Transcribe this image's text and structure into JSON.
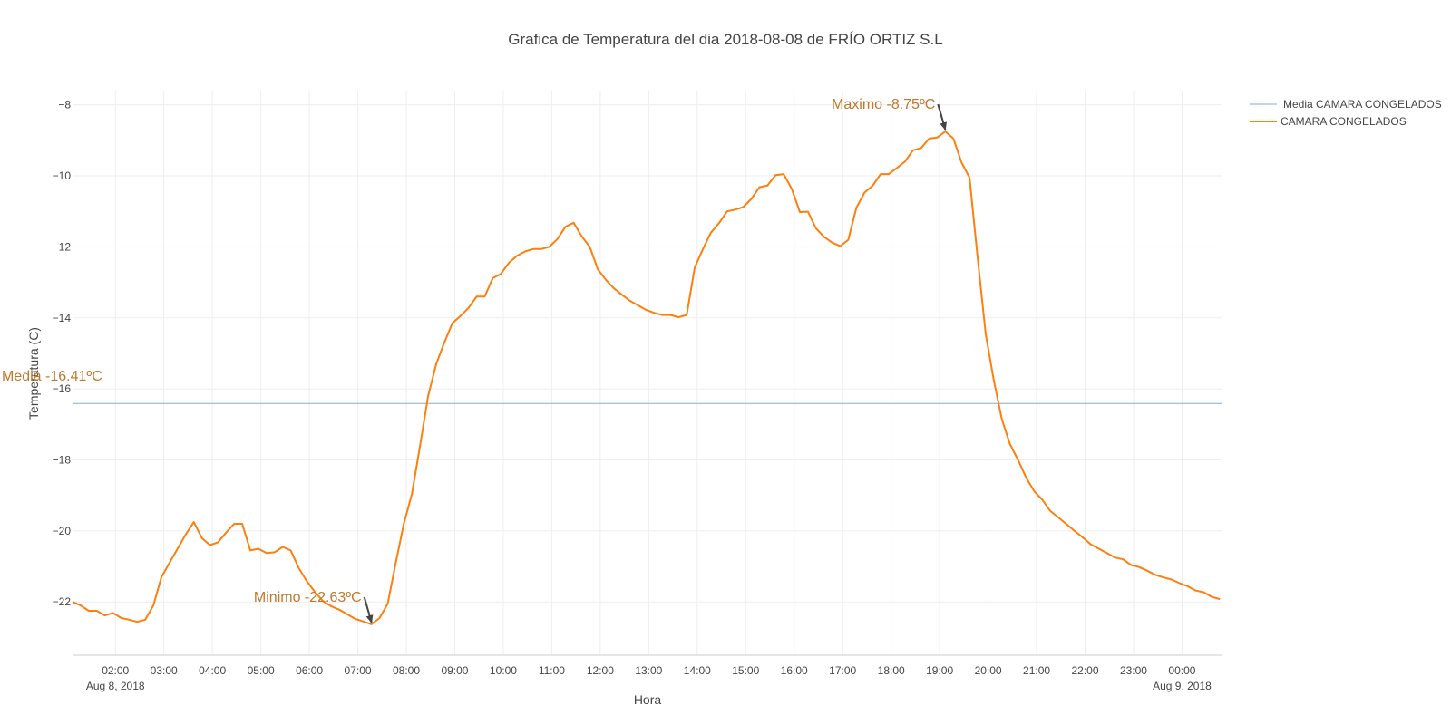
{
  "chart_data": {
    "type": "line",
    "title": "Grafica de Temperatura del dia 2018-08-08 de FRÍO ORTIZ S.L",
    "xlabel": "Hora",
    "ylabel": "Temperatura (C)",
    "x_range": [
      "2018-08-08 01:07",
      "2018-08-09 00:50"
    ],
    "ylim": [
      -23.5,
      -7.6
    ],
    "grid": true,
    "legend_position": "top-right",
    "x_ticks": [
      "02:00",
      "03:00",
      "04:00",
      "05:00",
      "06:00",
      "07:00",
      "08:00",
      "09:00",
      "10:00",
      "11:00",
      "12:00",
      "13:00",
      "14:00",
      "15:00",
      "15:00",
      "16:00",
      "17:00",
      "18:00",
      "19:00",
      "20:00",
      "21:00",
      "22:00",
      "23:00",
      "00:00"
    ],
    "x_tick_times": [
      "2018-08-08 02:00",
      "2018-08-08 03:00",
      "2018-08-08 04:00",
      "2018-08-08 05:00",
      "2018-08-08 06:00",
      "2018-08-08 07:00",
      "2018-08-08 08:00",
      "2018-08-08 09:00",
      "2018-08-08 10:00",
      "2018-08-08 11:00",
      "2018-08-08 12:00",
      "2018-08-08 13:00",
      "2018-08-08 14:00",
      "2018-08-08 15:00",
      "2018-08-08 15:00",
      "2018-08-08 16:00",
      "2018-08-08 17:00",
      "2018-08-08 18:00",
      "2018-08-08 19:00",
      "2018-08-08 20:00",
      "2018-08-08 21:00",
      "2018-08-08 22:00",
      "2018-08-08 23:00",
      "2018-08-09 00:00"
    ],
    "date_labels": [
      {
        "text": "Aug 8, 2018",
        "at": "2018-08-08 02:00"
      },
      {
        "text": "Aug 9, 2018",
        "at": "2018-08-09 00:00"
      }
    ],
    "y_ticks": [
      -22,
      -20,
      -18,
      -16,
      -14,
      -12,
      -10,
      -8
    ],
    "series": [
      {
        "name": "Media CAMARA CONGELADOS",
        "color": "#8aaecb",
        "x": [
          "2018-08-08 01:07",
          "2018-08-09 00:50"
        ],
        "y": [
          -16.41,
          -16.41
        ]
      },
      {
        "name": "CAMARA CONGELADOS",
        "color": "#ff7f0e",
        "x": [
          "2018-08-08 01:07",
          "2018-08-08 01:17",
          "2018-08-08 01:27",
          "2018-08-08 01:37",
          "2018-08-08 01:47",
          "2018-08-08 01:57",
          "2018-08-08 02:07",
          "2018-08-08 02:17",
          "2018-08-08 02:27",
          "2018-08-08 02:37",
          "2018-08-08 02:47",
          "2018-08-08 02:57",
          "2018-08-08 03:07",
          "2018-08-08 03:17",
          "2018-08-08 03:27",
          "2018-08-08 03:37",
          "2018-08-08 03:47",
          "2018-08-08 03:57",
          "2018-08-08 04:07",
          "2018-08-08 04:17",
          "2018-08-08 04:27",
          "2018-08-08 04:37",
          "2018-08-08 04:47",
          "2018-08-08 04:57",
          "2018-08-08 05:07",
          "2018-08-08 05:17",
          "2018-08-08 05:27",
          "2018-08-08 05:37",
          "2018-08-08 05:47",
          "2018-08-08 05:57",
          "2018-08-08 06:07",
          "2018-08-08 06:17",
          "2018-08-08 06:27",
          "2018-08-08 06:37",
          "2018-08-08 06:47",
          "2018-08-08 06:57",
          "2018-08-08 07:07",
          "2018-08-08 07:17",
          "2018-08-08 07:27",
          "2018-08-08 07:37",
          "2018-08-08 07:47",
          "2018-08-08 07:57",
          "2018-08-08 08:07",
          "2018-08-08 08:17",
          "2018-08-08 08:27",
          "2018-08-08 08:37",
          "2018-08-08 08:47",
          "2018-08-08 08:57",
          "2018-08-08 09:07",
          "2018-08-08 09:17",
          "2018-08-08 09:27",
          "2018-08-08 09:37",
          "2018-08-08 09:47",
          "2018-08-08 09:57",
          "2018-08-08 10:07",
          "2018-08-08 10:17",
          "2018-08-08 10:27",
          "2018-08-08 10:37",
          "2018-08-08 10:47",
          "2018-08-08 10:57",
          "2018-08-08 11:07",
          "2018-08-08 11:17",
          "2018-08-08 11:27",
          "2018-08-08 11:37",
          "2018-08-08 11:47",
          "2018-08-08 11:57",
          "2018-08-08 12:07",
          "2018-08-08 12:17",
          "2018-08-08 12:27",
          "2018-08-08 12:37",
          "2018-08-08 12:47",
          "2018-08-08 12:57",
          "2018-08-08 13:07",
          "2018-08-08 13:17",
          "2018-08-08 13:27",
          "2018-08-08 13:37",
          "2018-08-08 13:47",
          "2018-08-08 13:57",
          "2018-08-08 14:07",
          "2018-08-08 14:17",
          "2018-08-08 14:27",
          "2018-08-08 14:37",
          "2018-08-08 14:47",
          "2018-08-08 14:57",
          "2018-08-08 15:07",
          "2018-08-08 15:17",
          "2018-08-08 15:27",
          "2018-08-08 15:37",
          "2018-08-08 15:47",
          "2018-08-08 15:57",
          "2018-08-08 16:07",
          "2018-08-08 16:17",
          "2018-08-08 16:27",
          "2018-08-08 16:37",
          "2018-08-08 16:47",
          "2018-08-08 16:57",
          "2018-08-08 17:07",
          "2018-08-08 17:17",
          "2018-08-08 17:27",
          "2018-08-08 17:37",
          "2018-08-08 17:47",
          "2018-08-08 17:57",
          "2018-08-08 18:07",
          "2018-08-08 18:17",
          "2018-08-08 18:27",
          "2018-08-08 18:37",
          "2018-08-08 18:47",
          "2018-08-08 18:57",
          "2018-08-08 19:07",
          "2018-08-08 19:17",
          "2018-08-08 19:27",
          "2018-08-08 19:37",
          "2018-08-08 19:47",
          "2018-08-08 19:57",
          "2018-08-08 20:07",
          "2018-08-08 20:17",
          "2018-08-08 20:27",
          "2018-08-08 20:37",
          "2018-08-08 20:47",
          "2018-08-08 20:57",
          "2018-08-08 21:07",
          "2018-08-08 21:17",
          "2018-08-08 21:27",
          "2018-08-08 21:37",
          "2018-08-08 21:47",
          "2018-08-08 21:57",
          "2018-08-08 22:07",
          "2018-08-08 22:17",
          "2018-08-08 22:27",
          "2018-08-08 22:37",
          "2018-08-08 22:47",
          "2018-08-08 22:57",
          "2018-08-08 23:07",
          "2018-08-08 23:17",
          "2018-08-08 23:27",
          "2018-08-08 23:37",
          "2018-08-08 23:47",
          "2018-08-08 23:57",
          "2018-08-09 00:07",
          "2018-08-09 00:17",
          "2018-08-09 00:27",
          "2018-08-09 00:37",
          "2018-08-09 00:47"
        ],
        "y": [
          -22.0,
          -22.1,
          -22.25,
          -22.25,
          -22.38,
          -22.31,
          -22.45,
          -22.5,
          -22.56,
          -22.5,
          -22.1,
          -21.3,
          -20.9,
          -20.5,
          -20.1,
          -19.75,
          -20.2,
          -20.4,
          -20.32,
          -20.05,
          -19.8,
          -19.8,
          -20.55,
          -20.5,
          -20.62,
          -20.6,
          -20.45,
          -20.55,
          -21.05,
          -21.42,
          -21.72,
          -21.98,
          -22.12,
          -22.22,
          -22.35,
          -22.48,
          -22.55,
          -22.63,
          -22.45,
          -22.05,
          -20.9,
          -19.8,
          -18.95,
          -17.6,
          -16.2,
          -15.3,
          -14.7,
          -14.15,
          -13.95,
          -13.72,
          -13.4,
          -13.4,
          -12.88,
          -12.76,
          -12.45,
          -12.25,
          -12.13,
          -12.06,
          -12.06,
          -12.0,
          -11.78,
          -11.43,
          -11.32,
          -11.7,
          -12.0,
          -12.63,
          -12.93,
          -13.17,
          -13.35,
          -13.52,
          -13.65,
          -13.78,
          -13.86,
          -13.92,
          -13.92,
          -13.98,
          -13.92,
          -12.58,
          -12.07,
          -11.6,
          -11.33,
          -11.0,
          -10.95,
          -10.88,
          -10.65,
          -10.32,
          -10.27,
          -9.98,
          -9.95,
          -10.37,
          -11.02,
          -11.01,
          -11.48,
          -11.72,
          -11.88,
          -11.98,
          -11.8,
          -10.9,
          -10.47,
          -10.28,
          -9.95,
          -9.95,
          -9.78,
          -9.6,
          -9.28,
          -9.22,
          -8.95,
          -8.92,
          -8.75,
          -8.95,
          -9.62,
          -10.05,
          -12.3,
          -14.45,
          -15.75,
          -16.85,
          -17.55,
          -18.0,
          -18.5,
          -18.88,
          -19.12,
          -19.44,
          -19.62,
          -19.81,
          -20.0,
          -20.18,
          -20.38,
          -20.5,
          -20.62,
          -20.75,
          -20.8,
          -20.96,
          -21.02,
          -21.12,
          -21.24,
          -21.31,
          -21.37,
          -21.47,
          -21.56,
          -21.68,
          -21.73,
          -21.86,
          -21.92
        ]
      }
    ],
    "annotations": [
      {
        "text": "Maximo -8.75ºC",
        "x": "2018-08-08 19:07",
        "y": -8.75,
        "color": "#c0772c"
      },
      {
        "text": "Minimo -22.63ºC",
        "x": "2018-08-08 07:17",
        "y": -22.63,
        "color": "#c0772c"
      },
      {
        "text": "Media -16.41ºC",
        "x": "2018-08-08 01:07",
        "y": -16.41,
        "color": "#c0772c"
      }
    ]
  }
}
